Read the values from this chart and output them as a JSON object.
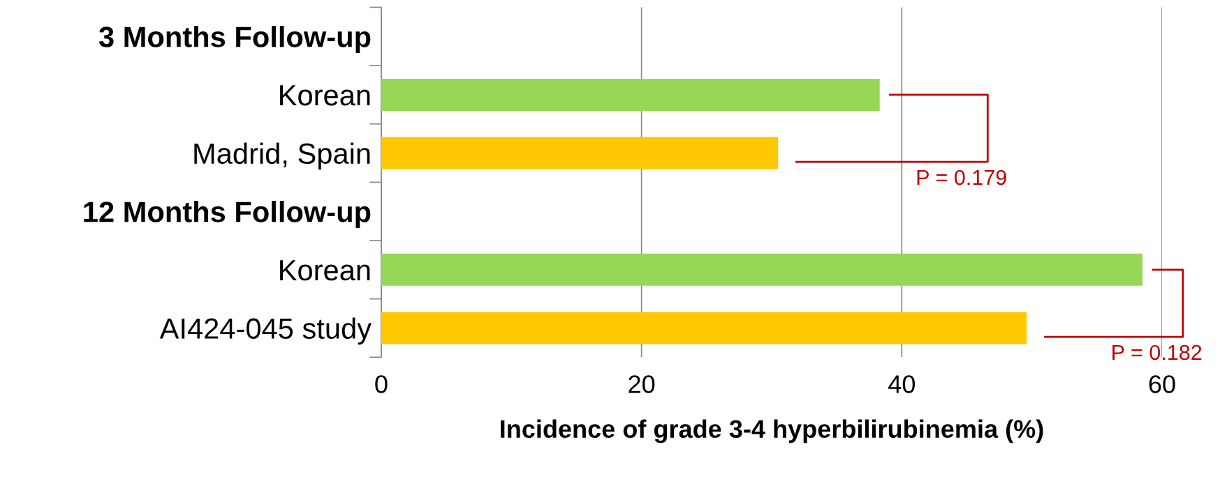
{
  "chart_data": {
    "type": "bar",
    "orientation": "horizontal",
    "categories": [
      "3 Months Follow-up",
      "Korean",
      "Madrid, Spain",
      "12 Months Follow-up",
      "Korean",
      "AI424-045 study"
    ],
    "values": [
      null,
      38.3,
      30.5,
      null,
      58.5,
      49.6
    ],
    "colors": [
      "#96d755",
      "#96d755",
      "#ffc800",
      "#96d755",
      "#96d755",
      "#ffc800"
    ],
    "xlabel": "Incidence of grade 3-4 hyperbilirubinemia (%)",
    "xlim": [
      0,
      60
    ],
    "xticks": [
      0,
      20,
      40,
      60
    ],
    "grid": "x",
    "annotations": [
      "P = 0.179",
      "P = 0.182"
    ]
  }
}
